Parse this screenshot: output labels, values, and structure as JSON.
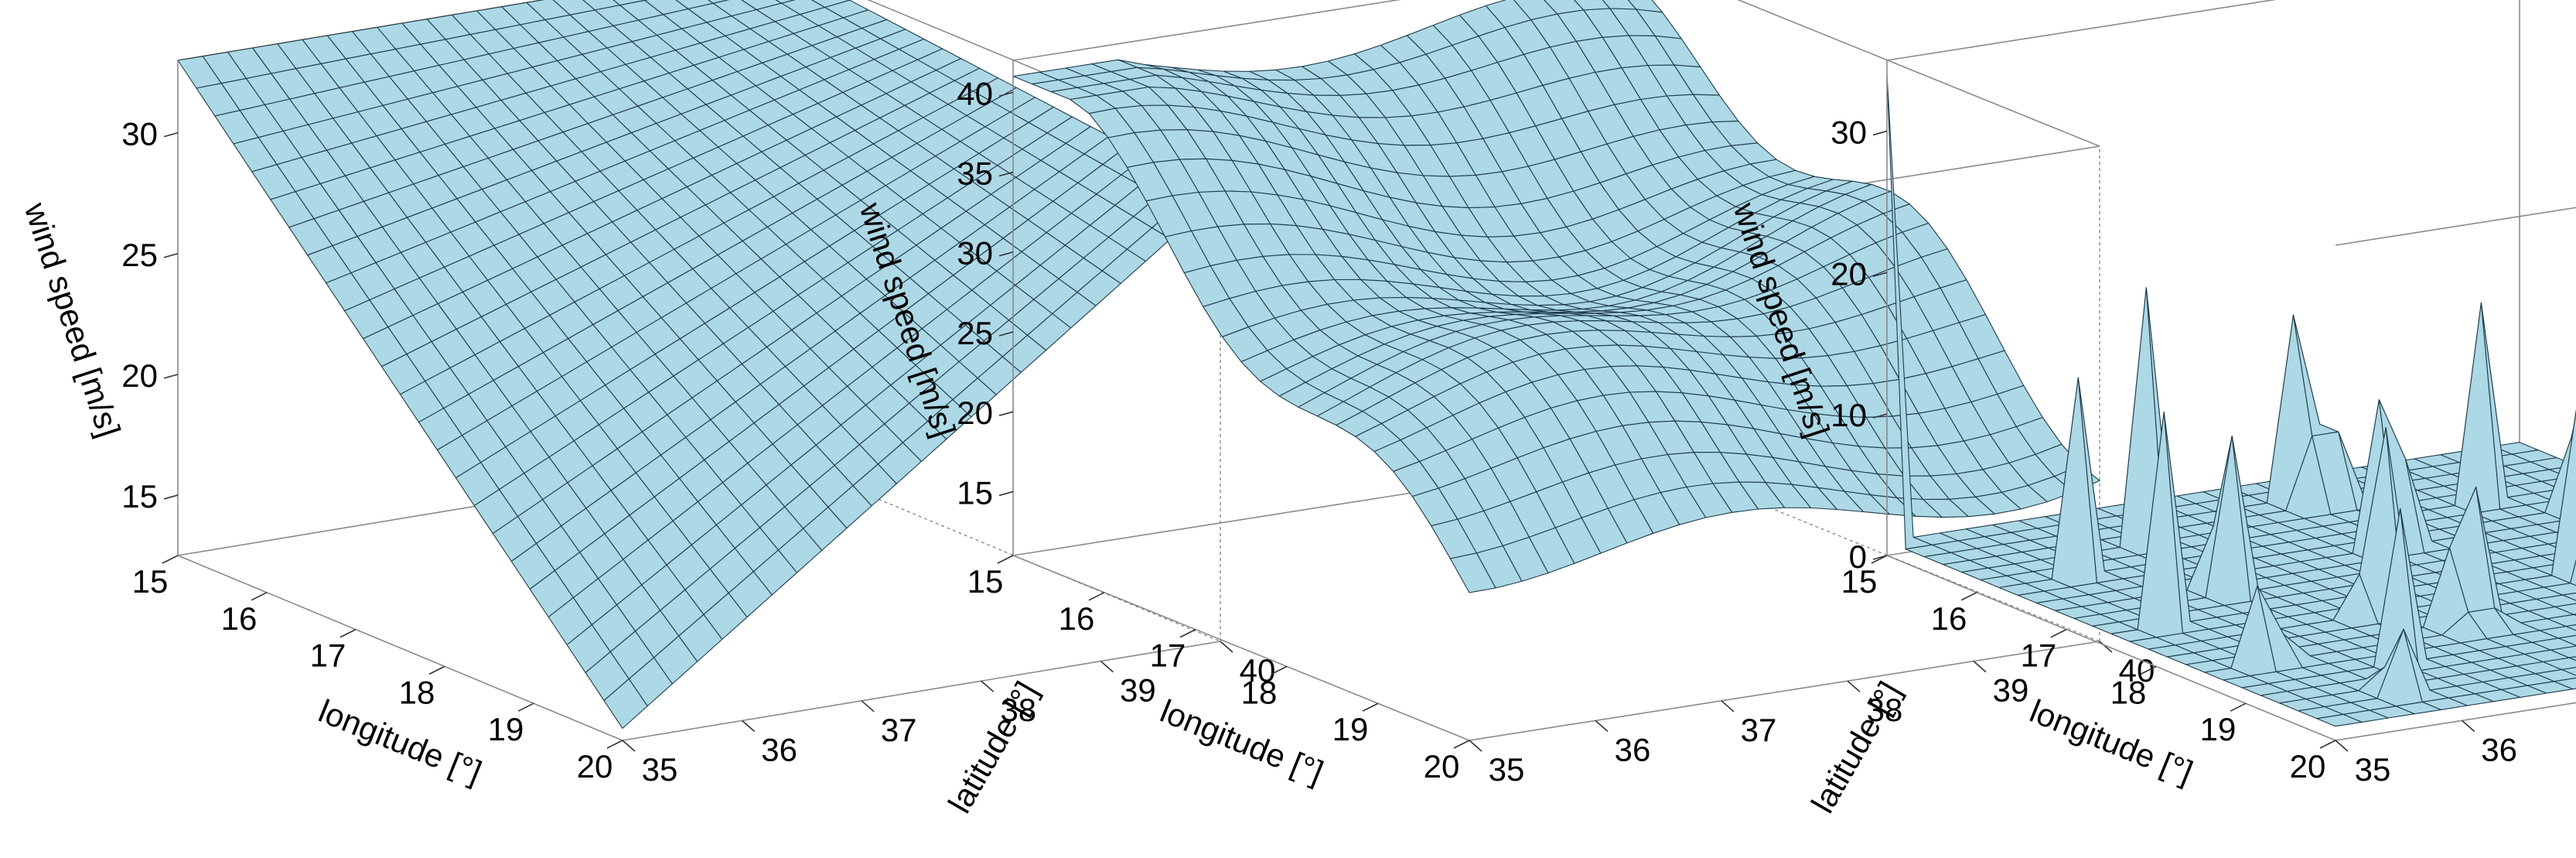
{
  "chart_data": [
    {
      "type": "surface",
      "x": {
        "label": "longitude [°]",
        "range": [
          15,
          20
        ],
        "ticks": [
          "15",
          "16",
          "17",
          "18",
          "19",
          "20"
        ]
      },
      "y": {
        "label": "latitude [°]",
        "range": [
          35,
          40
        ],
        "ticks": [
          "35",
          "36",
          "37",
          "38",
          "39",
          "40"
        ]
      },
      "z": {
        "label": "wind speed [m/s]",
        "range": [
          12.5,
          33
        ],
        "ticks": [
          "15",
          "20",
          "25",
          "30"
        ]
      },
      "surface": {
        "shape": "plane",
        "grid": [
          25,
          25
        ],
        "corners": {
          "lon15_lat35": 33,
          "lon20_lat35": 13,
          "lon15_lat40": 33,
          "lon20_lat40": 31
        }
      },
      "fill_color": "#add8e6",
      "line_color": "#1f3a4a"
    },
    {
      "type": "surface",
      "x": {
        "label": "longitude [°]",
        "range": [
          15,
          20
        ],
        "ticks": [
          "15",
          "16",
          "17",
          "18",
          "19",
          "20"
        ]
      },
      "y": {
        "label": "latitude [°]",
        "range": [
          35,
          40
        ],
        "ticks": [
          "35",
          "36",
          "37",
          "38",
          "39",
          "40"
        ]
      },
      "z": {
        "label": "wind speed [m/s]",
        "range": [
          11,
          42
        ],
        "ticks": [
          "15",
          "20",
          "25",
          "30",
          "35",
          "40"
        ]
      },
      "surface": {
        "shape": "wavy-decreasing",
        "grid": [
          25,
          25
        ],
        "max": 41,
        "min": 12
      },
      "fill_color": "#add8e6",
      "line_color": "#1f3a4a"
    },
    {
      "type": "surface",
      "x": {
        "label": "longitude [°]",
        "range": [
          15,
          20
        ],
        "ticks": [
          "15",
          "16",
          "17",
          "18",
          "19",
          "20"
        ]
      },
      "y": {
        "label": "latitude [°]",
        "range": [
          35,
          40
        ],
        "ticks": [
          "35",
          "36",
          "37",
          "38",
          "39",
          "40"
        ]
      },
      "z": {
        "label": "wind speed [m/s]",
        "range": [
          0,
          35
        ],
        "ticks": [
          "0",
          "10",
          "20",
          "30"
        ]
      },
      "surface": {
        "shape": "flat-with-spikes",
        "grid": [
          25,
          25
        ],
        "base": 1,
        "spikes": [
          {
            "lon": 15.0,
            "lat": 35.0,
            "z": 34
          },
          {
            "lon": 15.5,
            "lat": 38.0,
            "z": 30
          },
          {
            "lon": 15.8,
            "lat": 36.5,
            "z": 26
          },
          {
            "lon": 16.5,
            "lat": 39.5,
            "z": 30
          },
          {
            "lon": 16.7,
            "lat": 37.8,
            "z": 28
          },
          {
            "lon": 17.3,
            "lat": 39.4,
            "z": 33
          },
          {
            "lon": 17.0,
            "lat": 36.2,
            "z": 26
          },
          {
            "lon": 17.8,
            "lat": 38.6,
            "z": 32
          },
          {
            "lon": 18.2,
            "lat": 39.8,
            "z": 31
          },
          {
            "lon": 17.9,
            "lat": 36.8,
            "z": 27
          },
          {
            "lon": 18.7,
            "lat": 38.9,
            "z": 29
          },
          {
            "lon": 18.4,
            "lat": 37.2,
            "z": 25
          },
          {
            "lon": 19.1,
            "lat": 39.6,
            "z": 28
          },
          {
            "lon": 19.3,
            "lat": 38.1,
            "z": 24
          },
          {
            "lon": 18.9,
            "lat": 36.3,
            "z": 19
          },
          {
            "lon": 19.7,
            "lat": 39.4,
            "z": 22
          },
          {
            "lon": 19.8,
            "lat": 37.6,
            "z": 18
          },
          {
            "lon": 16.2,
            "lat": 35.6,
            "z": 22
          },
          {
            "lon": 17.5,
            "lat": 35.4,
            "z": 18
          },
          {
            "lon": 19.5,
            "lat": 35.8,
            "z": 12
          },
          {
            "lon": 16.1,
            "lat": 38.9,
            "z": 24
          },
          {
            "lon": 18.6,
            "lat": 35.5,
            "z": 14
          }
        ]
      },
      "fill_color": "#add8e6",
      "line_color": "#1f3a4a"
    }
  ]
}
